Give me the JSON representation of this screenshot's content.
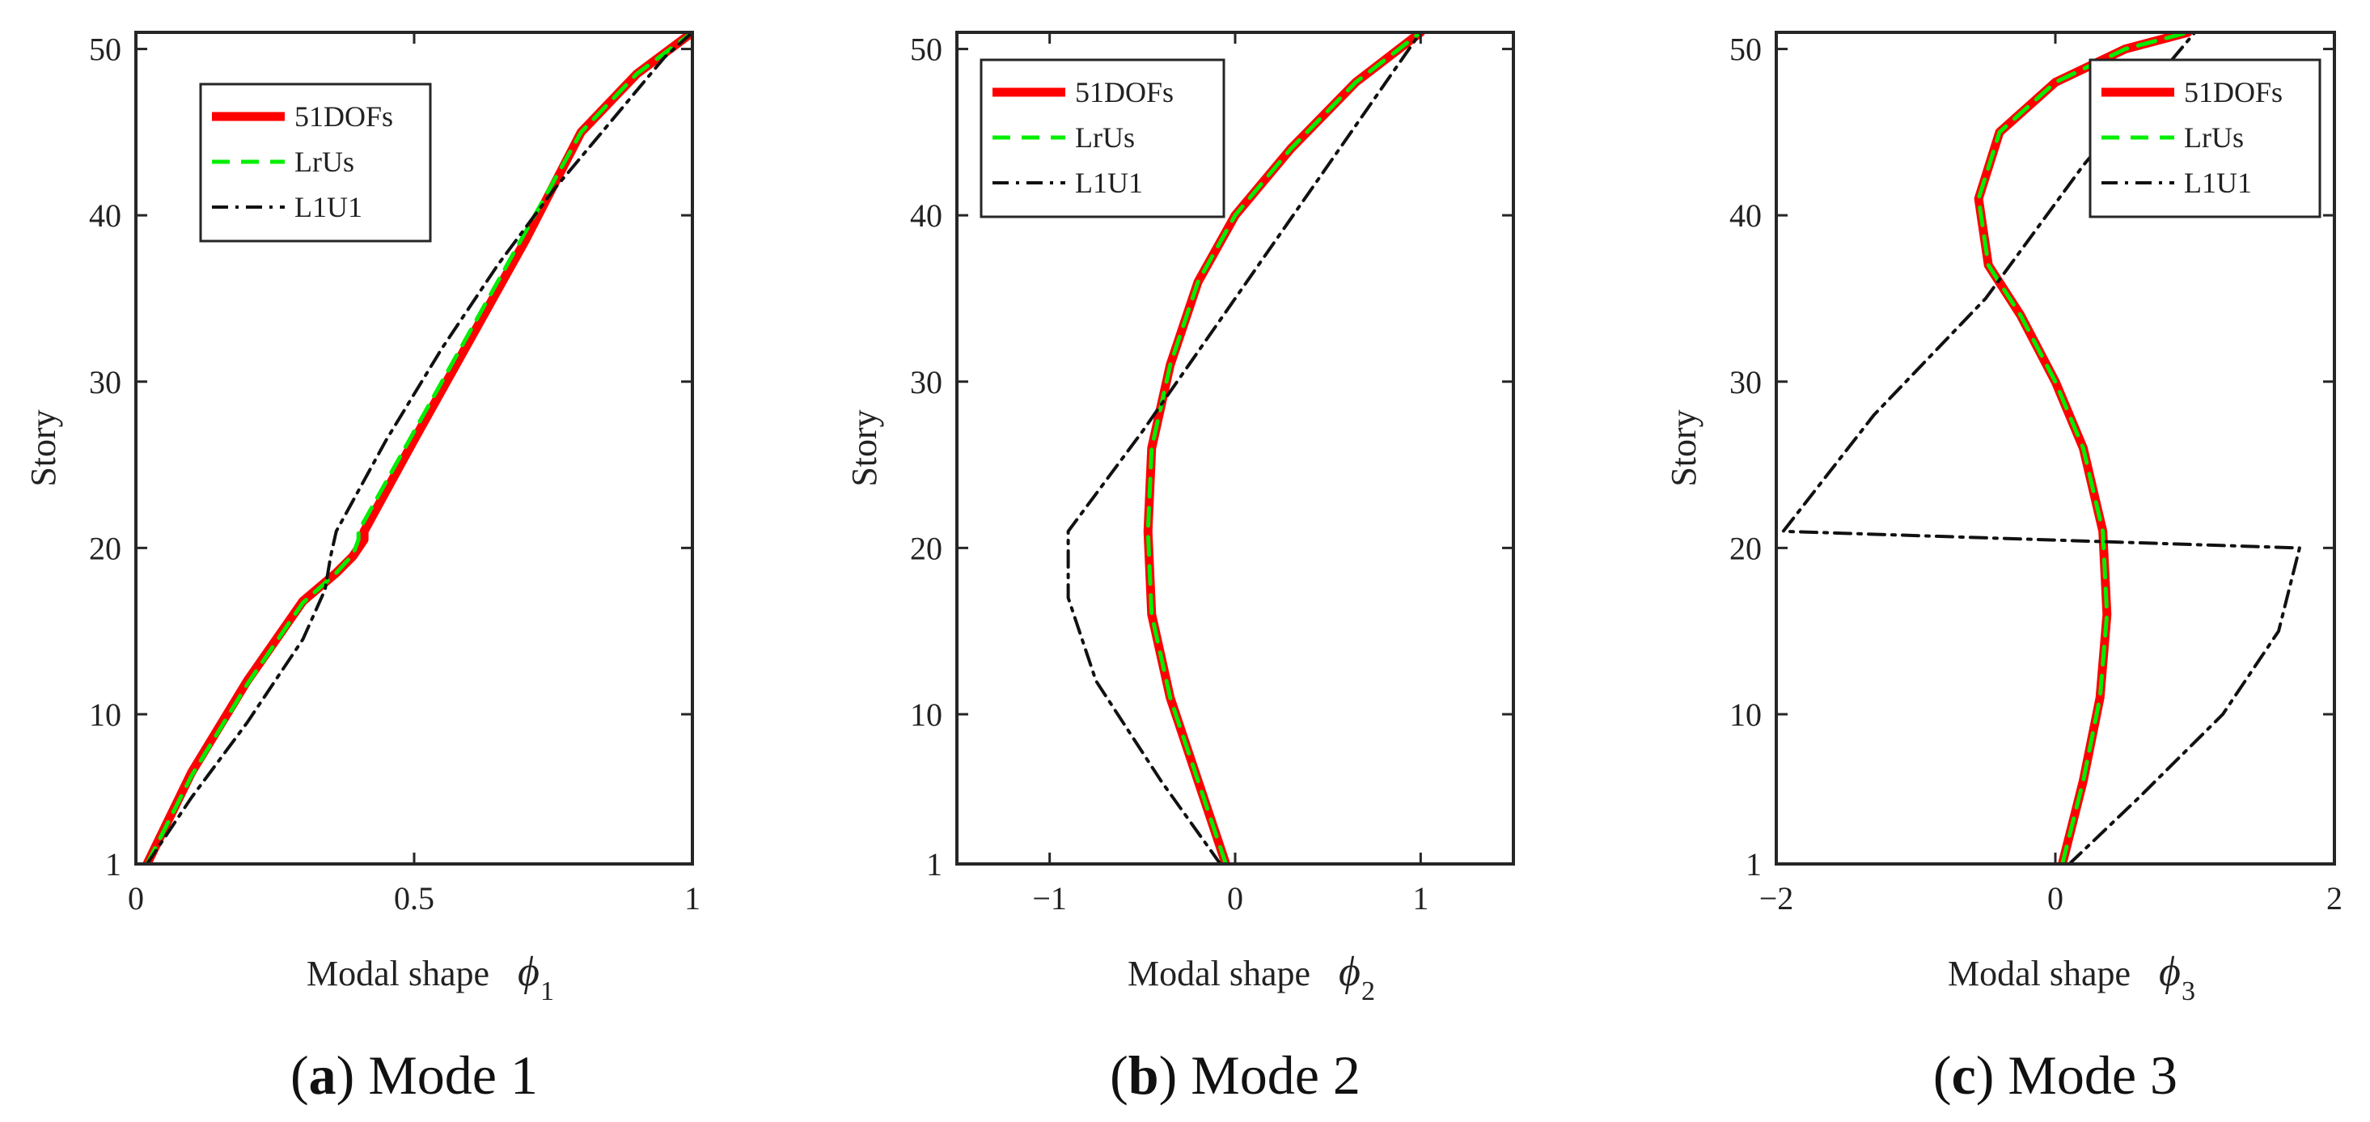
{
  "chart_data": [
    {
      "type": "line",
      "caption": {
        "label": "a",
        "text": "Mode 1"
      },
      "xlabel": "Modal shape",
      "xlabel_symbol": "ϕ",
      "xlabel_subscript": "1",
      "ylabel": "Story",
      "xlim": [
        0,
        1
      ],
      "ylim": [
        1,
        51
      ],
      "xticks": [
        0,
        0.5,
        1
      ],
      "xtick_labels": [
        "0",
        "0.5",
        "1"
      ],
      "yticks": [
        1,
        10,
        20,
        30,
        40,
        50
      ],
      "ytick_labels": [
        "1",
        "10",
        "20",
        "30",
        "40",
        "50"
      ],
      "legend": {
        "position": "top-left",
        "entries": [
          "51DOFs",
          "LrUs",
          "L1U1"
        ]
      },
      "series": [
        {
          "name": "51DOFs",
          "color": "#ff0000",
          "style": "solid",
          "x": [
            0.02,
            0.1,
            0.2,
            0.3,
            0.36,
            0.39,
            0.41,
            0.41,
            0.5,
            0.6,
            0.7,
            0.8,
            0.9,
            1.0
          ],
          "y": [
            1,
            6.5,
            12,
            16.8,
            18.5,
            19.5,
            20.5,
            21,
            26.5,
            32.5,
            38.5,
            45,
            48.5,
            51
          ]
        },
        {
          "name": "LrUs",
          "color": "#00ee00",
          "style": "dashed",
          "x": [
            0.02,
            0.1,
            0.2,
            0.3,
            0.36,
            0.39,
            0.4,
            0.4,
            0.5,
            0.6,
            0.7,
            0.8,
            0.9,
            1.0
          ],
          "y": [
            1,
            6.3,
            11.8,
            16.7,
            18.5,
            19.6,
            20.5,
            21,
            27,
            33,
            39,
            45,
            48.5,
            51
          ]
        },
        {
          "name": "L1U1",
          "color": "#111111",
          "style": "dashdot",
          "x": [
            0.02,
            0.1,
            0.2,
            0.3,
            0.34,
            0.35,
            0.36,
            0.45,
            0.55,
            0.65,
            0.75,
            0.85,
            0.95,
            1.0
          ],
          "y": [
            1,
            5,
            9.5,
            14.5,
            17.5,
            19.5,
            21,
            26.5,
            32,
            37,
            41.5,
            45.5,
            49.5,
            51
          ]
        }
      ]
    },
    {
      "type": "line",
      "caption": {
        "label": "b",
        "text": "Mode 2"
      },
      "xlabel": "Modal shape",
      "xlabel_symbol": "ϕ",
      "xlabel_subscript": "2",
      "ylabel": "Story",
      "xlim": [
        -1.5,
        1.5
      ],
      "ylim": [
        1,
        51
      ],
      "xticks": [
        -1,
        0,
        1
      ],
      "xtick_labels": [
        "−1",
        "0",
        "1"
      ],
      "yticks": [
        1,
        10,
        20,
        30,
        40,
        50
      ],
      "ytick_labels": [
        "1",
        "10",
        "20",
        "30",
        "40",
        "50"
      ],
      "legend": {
        "position": "top-left",
        "entries": [
          "51DOFs",
          "LrUs",
          "L1U1"
        ]
      },
      "series": [
        {
          "name": "51DOFs",
          "color": "#ff0000",
          "style": "solid",
          "x": [
            -0.05,
            -0.2,
            -0.35,
            -0.45,
            -0.47,
            -0.45,
            -0.35,
            -0.2,
            0.0,
            0.3,
            0.65,
            1.0
          ],
          "y": [
            1,
            6,
            11,
            16,
            21,
            26,
            31,
            36,
            40,
            44,
            48,
            51
          ]
        },
        {
          "name": "LrUs",
          "color": "#00ee00",
          "style": "dashed",
          "x": [
            -0.05,
            -0.2,
            -0.35,
            -0.45,
            -0.47,
            -0.45,
            -0.35,
            -0.2,
            0.0,
            0.3,
            0.65,
            1.0
          ],
          "y": [
            1,
            6,
            11,
            16,
            21,
            26,
            31,
            36,
            40,
            44,
            48,
            51
          ]
        },
        {
          "name": "L1U1",
          "color": "#111111",
          "style": "dashdot",
          "x": [
            -0.08,
            -0.4,
            -0.75,
            -0.9,
            -0.9,
            -0.5,
            0.0,
            0.5,
            1.0
          ],
          "y": [
            1,
            6,
            12,
            17,
            21,
            27,
            35,
            43,
            51
          ]
        }
      ]
    },
    {
      "type": "line",
      "caption": {
        "label": "c",
        "text": "Mode 3"
      },
      "xlabel": "Modal shape",
      "xlabel_symbol": "ϕ",
      "xlabel_subscript": "3",
      "ylabel": "Story",
      "xlim": [
        -2,
        2
      ],
      "ylim": [
        1,
        51
      ],
      "xticks": [
        -2,
        0,
        2
      ],
      "xtick_labels": [
        "−2",
        "0",
        "2"
      ],
      "yticks": [
        1,
        10,
        20,
        30,
        40,
        50
      ],
      "ytick_labels": [
        "1",
        "10",
        "20",
        "30",
        "40",
        "50"
      ],
      "legend": {
        "position": "top-right",
        "entries": [
          "51DOFs",
          "LrUs",
          "L1U1"
        ]
      },
      "series": [
        {
          "name": "51DOFs",
          "color": "#ff0000",
          "style": "solid",
          "x": [
            0.05,
            0.2,
            0.32,
            0.37,
            0.34,
            0.2,
            0.0,
            -0.25,
            -0.48,
            -0.55,
            -0.4,
            0.0,
            0.5,
            0.95
          ],
          "y": [
            1,
            6,
            11,
            16,
            21,
            26,
            30,
            34,
            37,
            41,
            45,
            48,
            50,
            51
          ]
        },
        {
          "name": "LrUs",
          "color": "#00ee00",
          "style": "dashed",
          "x": [
            0.05,
            0.2,
            0.32,
            0.37,
            0.34,
            0.2,
            0.0,
            -0.25,
            -0.48,
            -0.55,
            -0.4,
            0.0,
            0.5,
            0.95
          ],
          "y": [
            1,
            6,
            11,
            16,
            21,
            26,
            30,
            34,
            37,
            41,
            45,
            48,
            50,
            51
          ]
        },
        {
          "name": "L1U1",
          "color": "#111111",
          "style": "dashdot",
          "x": [
            0.1,
            0.6,
            1.2,
            1.6,
            1.75,
            -1.95,
            -1.3,
            -0.5,
            0.2,
            1.0
          ],
          "y": [
            1,
            5,
            10,
            15,
            20,
            21,
            28,
            35,
            43,
            51
          ]
        }
      ]
    }
  ]
}
